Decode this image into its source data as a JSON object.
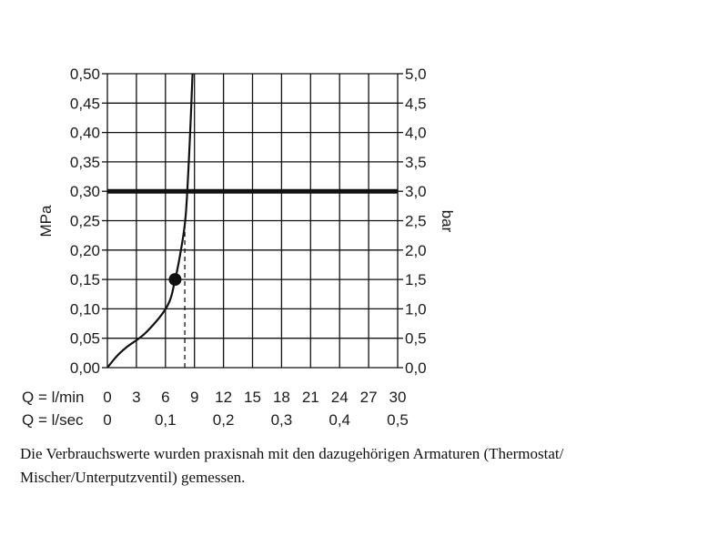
{
  "chart_data": {
    "type": "line",
    "left_axis": {
      "label": "MPa",
      "range": [
        0,
        0.5
      ],
      "ticks": [
        "0,00",
        "0,05",
        "0,10",
        "0,15",
        "0,20",
        "0,25",
        "0,30",
        "0,35",
        "0,40",
        "0,45",
        "0,50"
      ]
    },
    "right_axis": {
      "label": "bar",
      "range": [
        0,
        5
      ],
      "ticks": [
        "0,0",
        "0,5",
        "1,0",
        "1,5",
        "2,0",
        "2,5",
        "3,0",
        "3,5",
        "4,0",
        "4,5",
        "5,0"
      ]
    },
    "x_axis_lmin": {
      "label": "Q = l/min",
      "range": [
        0,
        30
      ],
      "ticks": [
        "0",
        "3",
        "6",
        "9",
        "12",
        "15",
        "18",
        "21",
        "24",
        "27",
        "30"
      ]
    },
    "x_axis_lsec": {
      "label": "Q = l/sec",
      "ticks": [
        {
          "value": 0,
          "label": "0"
        },
        {
          "value": 6,
          "label": "0,1"
        },
        {
          "value": 12,
          "label": "0,2"
        },
        {
          "value": 18,
          "label": "0,3"
        },
        {
          "value": 24,
          "label": "0,4"
        },
        {
          "value": 30,
          "label": "0,5"
        }
      ]
    },
    "grid": true,
    "series": [
      {
        "x": [
          0,
          1,
          2,
          4,
          6.2,
          7.0,
          7.6,
          8.1,
          8.5,
          8.8
        ],
        "y": [
          0,
          0.02,
          0.035,
          0.06,
          0.105,
          0.15,
          0.2,
          0.26,
          0.38,
          0.5
        ]
      }
    ],
    "reference_line": {
      "y": 0.3
    },
    "marker": {
      "x": 7.0,
      "y": 0.15
    },
    "dashed_guide": {
      "x": 8.0,
      "y_from": 0,
      "y_to": 0.24
    }
  },
  "caption": "Die Verbrauchswerte wurden praxisnah mit den dazugehörigen Armaturen (Thermostat/ Mischer/Unterputzventil) gemessen.",
  "colors": {
    "line": "#111111",
    "grid": "#111111",
    "text": "#1a1a1a"
  }
}
